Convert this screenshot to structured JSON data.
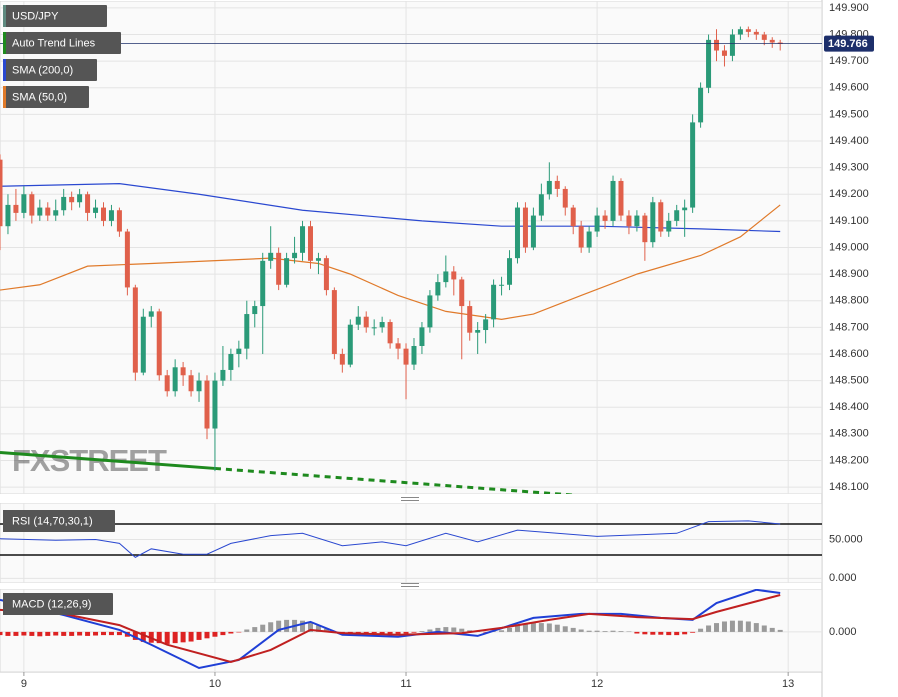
{
  "chart_data": [
    {
      "type": "candlestick",
      "name": "USD/JPY",
      "color": "#5f8a80",
      "up_color": "#2a9a78",
      "down_color": "#e0604b",
      "watermark": "FXSTREET",
      "x": [
        -3,
        -2,
        -1,
        0,
        1,
        2,
        3,
        4,
        5,
        6,
        7,
        8,
        9,
        10,
        11,
        12,
        13,
        14,
        15,
        16,
        17,
        18,
        19,
        20,
        21,
        22,
        23,
        24,
        25,
        26,
        27,
        28,
        29,
        30,
        31,
        32,
        33,
        34,
        35,
        36,
        37,
        38,
        39,
        40,
        41,
        42,
        43,
        44,
        45,
        46,
        47,
        48,
        49,
        50,
        51,
        52,
        53,
        54,
        55,
        56,
        57,
        58,
        59,
        60,
        61,
        62,
        63,
        64,
        65,
        66,
        67,
        68,
        69,
        70,
        71,
        72,
        73,
        74,
        75,
        76,
        77,
        78,
        79,
        80,
        81,
        82,
        83,
        84,
        85,
        86,
        87,
        88,
        89,
        90,
        91,
        92,
        93,
        94,
        95
      ],
      "open": [
        149.33,
        149.08,
        149.16,
        149.13,
        149.2,
        149.12,
        149.15,
        149.12,
        149.14,
        149.19,
        149.17,
        149.2,
        149.13,
        149.15,
        149.1,
        149.14,
        149.06,
        148.85,
        148.53,
        148.74,
        148.76,
        148.52,
        148.46,
        148.55,
        148.52,
        148.46,
        148.5,
        148.32,
        148.5,
        148.54,
        148.6,
        148.62,
        148.75,
        148.78,
        148.95,
        148.98,
        148.86,
        148.96,
        148.98,
        149.08,
        148.95,
        148.96,
        148.84,
        148.6,
        148.56,
        148.71,
        148.74,
        148.7,
        148.7,
        148.72,
        148.64,
        148.62,
        148.56,
        148.63,
        148.7,
        148.82,
        148.87,
        148.91,
        148.88,
        148.78,
        148.68,
        148.69,
        148.73,
        148.86,
        148.86,
        148.96,
        149.15,
        149.0,
        149.12,
        149.2,
        149.25,
        149.22,
        149.15,
        149.08,
        149.0,
        149.06,
        149.12,
        149.1,
        149.25,
        149.12,
        149.08,
        149.12,
        149.02,
        149.17,
        149.06,
        149.1,
        149.14,
        149.15,
        149.47,
        149.6,
        149.78,
        149.74,
        149.72,
        149.8,
        149.82,
        149.81,
        149.8,
        149.78,
        149.77
      ],
      "high": [
        149.35,
        149.2,
        149.22,
        149.23,
        149.21,
        149.18,
        149.17,
        149.18,
        149.22,
        149.21,
        149.22,
        149.21,
        149.18,
        149.17,
        149.16,
        149.15,
        149.07,
        148.86,
        148.77,
        148.78,
        148.77,
        148.54,
        148.58,
        148.57,
        148.54,
        148.53,
        148.52,
        148.53,
        148.63,
        148.62,
        148.65,
        148.8,
        148.8,
        148.98,
        149.08,
        149.0,
        148.98,
        149.04,
        149.1,
        149.1,
        148.98,
        148.97,
        148.85,
        148.62,
        148.73,
        148.78,
        148.76,
        148.73,
        148.74,
        148.73,
        148.66,
        148.64,
        148.66,
        148.72,
        148.84,
        148.9,
        148.97,
        148.93,
        148.89,
        148.8,
        148.72,
        148.75,
        148.88,
        148.89,
        148.99,
        149.17,
        149.17,
        149.15,
        149.24,
        149.32,
        149.27,
        149.23,
        149.16,
        149.1,
        149.08,
        149.15,
        149.14,
        149.27,
        149.26,
        149.14,
        149.14,
        149.13,
        149.19,
        149.18,
        149.13,
        149.16,
        149.18,
        149.5,
        149.62,
        149.8,
        149.82,
        149.76,
        149.82,
        149.83,
        149.83,
        149.82,
        149.81,
        149.79,
        149.78
      ],
      "low": [
        148.99,
        149.05,
        149.1,
        149.11,
        149.09,
        149.1,
        149.1,
        149.1,
        149.12,
        149.14,
        149.15,
        149.1,
        149.11,
        149.08,
        149.08,
        149.04,
        148.82,
        148.5,
        148.52,
        148.7,
        148.5,
        148.44,
        148.44,
        148.48,
        148.44,
        148.42,
        148.28,
        148.16,
        148.48,
        148.5,
        148.55,
        148.58,
        148.7,
        148.6,
        148.92,
        148.84,
        148.85,
        148.94,
        148.95,
        148.92,
        148.9,
        148.82,
        148.58,
        148.53,
        148.55,
        148.69,
        148.68,
        148.67,
        148.68,
        148.62,
        148.58,
        148.43,
        148.54,
        148.6,
        148.68,
        148.8,
        148.85,
        148.82,
        148.58,
        148.65,
        148.6,
        148.64,
        148.7,
        148.82,
        148.84,
        148.94,
        148.98,
        148.99,
        149.1,
        149.18,
        149.19,
        149.12,
        149.05,
        148.98,
        148.98,
        149.04,
        149.07,
        149.08,
        149.1,
        149.05,
        149.06,
        148.95,
        149.0,
        149.04,
        149.04,
        149.08,
        149.04,
        149.13,
        149.45,
        149.58,
        149.7,
        149.68,
        149.7,
        149.78,
        149.79,
        149.78,
        149.76,
        149.75,
        149.74
      ],
      "close": [
        149.08,
        149.16,
        149.13,
        149.2,
        149.12,
        149.15,
        149.12,
        149.14,
        149.19,
        149.17,
        149.2,
        149.13,
        149.15,
        149.1,
        149.14,
        149.06,
        148.85,
        148.53,
        148.74,
        148.76,
        148.52,
        148.46,
        148.55,
        148.52,
        148.46,
        148.5,
        148.32,
        148.5,
        148.54,
        148.6,
        148.62,
        148.75,
        148.78,
        148.95,
        148.98,
        148.86,
        148.96,
        148.98,
        149.08,
        148.95,
        148.96,
        148.84,
        148.6,
        148.56,
        148.71,
        148.74,
        148.7,
        148.7,
        148.72,
        148.64,
        148.62,
        148.56,
        148.63,
        148.7,
        148.82,
        148.87,
        148.91,
        148.88,
        148.78,
        148.68,
        148.69,
        148.73,
        148.86,
        148.86,
        148.96,
        149.15,
        149.0,
        149.12,
        149.2,
        149.25,
        149.22,
        149.15,
        149.08,
        149.0,
        149.06,
        149.12,
        149.1,
        149.25,
        149.12,
        149.08,
        149.12,
        149.02,
        149.17,
        149.06,
        149.1,
        149.14,
        149.15,
        149.47,
        149.6,
        149.78,
        149.74,
        149.72,
        149.8,
        149.82,
        149.81,
        149.8,
        149.78,
        149.77,
        149.766
      ],
      "overlays": [
        {
          "name": "Auto Trend Lines",
          "color": "#1e8a1e",
          "x": [
            -3,
            24,
            69
          ],
          "values": [
            148.23,
            148.17,
            148.07
          ],
          "dashed_from": 1
        },
        {
          "name": "SMA (200,0)",
          "color": "#2a48d0",
          "x": [
            -3,
            12,
            22,
            35,
            50,
            60,
            72,
            85,
            95
          ],
          "values": [
            149.23,
            149.24,
            149.2,
            149.14,
            149.1,
            149.08,
            149.08,
            149.07,
            149.06
          ]
        },
        {
          "name": "SMA (50,0)",
          "color": "#e07a2a",
          "x": [
            -3,
            2,
            8,
            16,
            31,
            37,
            41,
            47,
            53,
            60,
            64,
            70,
            77,
            85,
            90,
            95
          ],
          "values": [
            148.84,
            148.86,
            148.93,
            148.94,
            148.96,
            148.94,
            148.9,
            148.82,
            148.76,
            148.73,
            148.75,
            148.82,
            148.9,
            148.97,
            149.04,
            149.16
          ]
        }
      ],
      "last_price": 149.766,
      "last_price_color": "#1d2f6b",
      "xlim": [
        -3,
        100.25
      ],
      "ylim": [
        148.074,
        149.926
      ],
      "grid": true,
      "yticks": [
        {
          "value": 148.1,
          "label": "148.100"
        },
        {
          "value": 148.2,
          "label": "148.200"
        },
        {
          "value": 148.3,
          "label": "148.300"
        },
        {
          "value": 148.4,
          "label": "148.400"
        },
        {
          "value": 148.5,
          "label": "148.500"
        },
        {
          "value": 148.6,
          "label": "148.600"
        },
        {
          "value": 148.7,
          "label": "148.700"
        },
        {
          "value": 148.8,
          "label": "148.800"
        },
        {
          "value": 148.9,
          "label": "148.900"
        },
        {
          "value": 149.0,
          "label": "149.000"
        },
        {
          "value": 149.1,
          "label": "149.100"
        },
        {
          "value": 149.2,
          "label": "149.200"
        },
        {
          "value": 149.3,
          "label": "149.300"
        },
        {
          "value": 149.4,
          "label": "149.400"
        },
        {
          "value": 149.5,
          "label": "149.500"
        },
        {
          "value": 149.6,
          "label": "149.600"
        },
        {
          "value": 149.7,
          "label": "149.700"
        },
        {
          "value": 149.8,
          "label": "149.800"
        },
        {
          "value": 149.9,
          "label": "149.900"
        }
      ]
    },
    {
      "type": "line",
      "title": "RSI (14,70,30,1)",
      "color": "#2a48d0",
      "x": [
        -3,
        4,
        9,
        12,
        14,
        16,
        20,
        23,
        26,
        31,
        35,
        40,
        45,
        48,
        53,
        57,
        62,
        67,
        72,
        77,
        82,
        86,
        91,
        95
      ],
      "values": [
        51,
        49,
        50,
        45,
        27,
        38,
        31,
        31,
        45,
        55,
        58,
        42,
        47,
        42,
        58,
        47,
        62,
        58,
        54,
        56,
        58,
        73,
        74,
        70
      ],
      "levels": [
        70,
        30
      ],
      "xlim": [
        -3,
        100.25
      ],
      "ylim": [
        -6,
        97
      ],
      "yticks": [
        {
          "value": 50,
          "label": "50.000"
        },
        {
          "value": 0,
          "label": "0.000"
        }
      ]
    },
    {
      "type": "macd",
      "title": "MACD (12,26,9)",
      "up_color": "#9a9a9a",
      "down_color": "#dd2222",
      "x": [
        -3,
        -2,
        -1,
        0,
        1,
        2,
        3,
        4,
        5,
        6,
        7,
        8,
        9,
        10,
        11,
        12,
        13,
        14,
        15,
        16,
        17,
        18,
        19,
        20,
        21,
        22,
        23,
        24,
        25,
        26,
        27,
        28,
        29,
        30,
        31,
        32,
        33,
        34,
        35,
        36,
        37,
        38,
        39,
        40,
        41,
        42,
        43,
        44,
        45,
        46,
        47,
        48,
        49,
        50,
        51,
        52,
        53,
        54,
        55,
        56,
        57,
        58,
        59,
        60,
        61,
        62,
        63,
        64,
        65,
        66,
        67,
        68,
        69,
        70,
        71,
        72,
        73,
        74,
        75,
        76,
        77,
        78,
        79,
        80,
        81,
        82,
        83,
        84,
        85,
        86,
        87,
        88,
        89,
        90,
        91,
        92,
        93,
        94,
        95
      ],
      "histogram": [
        -0.008,
        -0.01,
        -0.01,
        -0.009,
        -0.01,
        -0.011,
        -0.01,
        -0.009,
        -0.01,
        -0.01,
        -0.009,
        -0.01,
        -0.009,
        -0.008,
        -0.008,
        -0.008,
        -0.012,
        -0.02,
        -0.025,
        -0.027,
        -0.028,
        -0.03,
        -0.028,
        -0.026,
        -0.024,
        -0.02,
        -0.016,
        -0.012,
        -0.008,
        -0.004,
        -0.001,
        0.006,
        0.012,
        0.018,
        0.024,
        0.028,
        0.03,
        0.03,
        0.028,
        0.024,
        0.016,
        0.008,
        -0.002,
        -0.005,
        -0.005,
        -0.004,
        -0.004,
        -0.003,
        -0.004,
        -0.004,
        -0.005,
        -0.004,
        -0.002,
        0.002,
        0.006,
        0.01,
        0.012,
        0.011,
        0.008,
        0.004,
        0.001,
        -0.001,
        0.001,
        0.004,
        0.01,
        0.016,
        0.02,
        0.022,
        0.022,
        0.021,
        0.018,
        0.014,
        0.01,
        0.006,
        0.003,
        0.003,
        0.002,
        0.003,
        0.002,
        0.001,
        -0.004,
        -0.006,
        -0.007,
        -0.007,
        -0.008,
        -0.008,
        -0.006,
        -0.002,
        0.008,
        0.016,
        0.022,
        0.026,
        0.028,
        0.028,
        0.026,
        0.022,
        0.016,
        0.01,
        0.005
      ],
      "lines": [
        {
          "color": "#1f3fd6",
          "x": [
            -3,
            5,
            12,
            16,
            22,
            27,
            32,
            36,
            40,
            47,
            52,
            57,
            64,
            70,
            75,
            80,
            84,
            87,
            92,
            95
          ],
          "values": [
            0.08,
            0.042,
            0.005,
            -0.032,
            -0.09,
            -0.07,
            0.005,
            0.025,
            -0.007,
            -0.012,
            0,
            -0.01,
            0.035,
            0.045,
            0.045,
            0.035,
            0.03,
            0.072,
            0.105,
            0.097
          ]
        },
        {
          "color": "#c02020",
          "x": [
            -3,
            5,
            12,
            18,
            26,
            31,
            36,
            40,
            47,
            55,
            60,
            66,
            71,
            77,
            84,
            87,
            95
          ],
          "values": [
            0.055,
            0.045,
            0.017,
            -0.032,
            -0.075,
            -0.045,
            0.005,
            -0.003,
            -0.007,
            -0.003,
            0.01,
            0.03,
            0.045,
            0.037,
            0.032,
            0.05,
            0.092
          ]
        }
      ],
      "xlim": [
        -3,
        100.25
      ],
      "ylim": [
        -0.1,
        0.107
      ],
      "yticks": [
        {
          "value": 0,
          "label": "0.000"
        }
      ],
      "xticks": [
        {
          "value": 0,
          "label": "9"
        },
        {
          "value": 24,
          "label": "10"
        },
        {
          "value": 48,
          "label": "11"
        },
        {
          "value": 72,
          "label": "12"
        },
        {
          "value": 96,
          "label": "13"
        }
      ]
    }
  ]
}
